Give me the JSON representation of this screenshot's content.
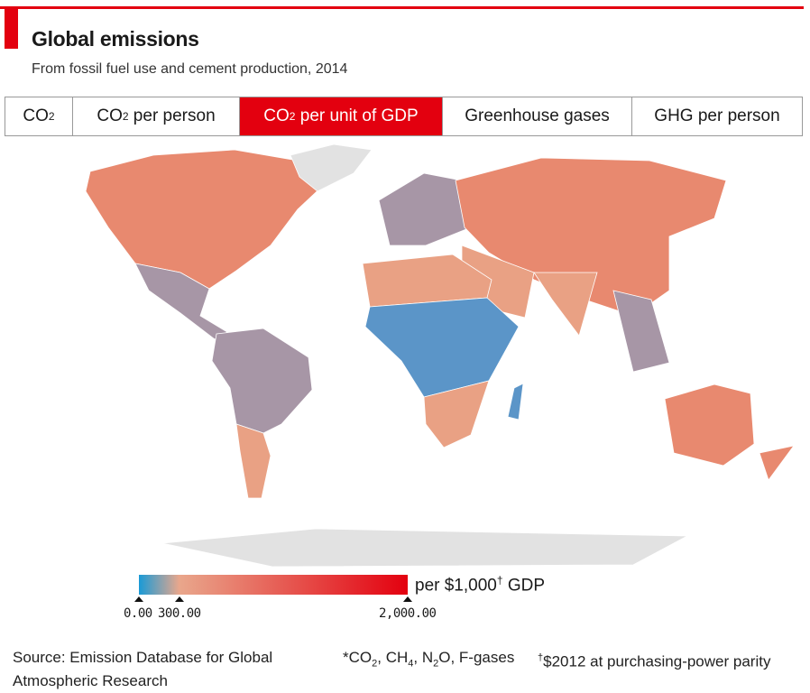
{
  "header": {
    "title": "Global emissions",
    "subtitle": "From fossil fuel use and cement production, 2014"
  },
  "tabs": [
    {
      "label": "CO",
      "sub": "2",
      "rest": "",
      "active": false
    },
    {
      "label": "CO",
      "sub": "2",
      "rest": " per person",
      "active": false
    },
    {
      "label": "CO",
      "sub": "2",
      "rest": " per unit of GDP",
      "active": true
    },
    {
      "label": "Greenhouse gases",
      "sub": "",
      "rest": "",
      "active": false
    },
    {
      "label": "GHG per person",
      "sub": "",
      "rest": "",
      "active": false
    }
  ],
  "legend": {
    "unit_pre": "per $1,000",
    "unit_sup": "†",
    "unit_post": " GDP",
    "ticks": [
      "0.00",
      "300.00",
      "2,000.00"
    ],
    "scale": {
      "min": 0,
      "mid": 300,
      "max": 2000,
      "colors": [
        "#1a9ad6",
        "#e9a78c",
        "#e3000f"
      ]
    }
  },
  "colors": {
    "accent": "#e3000f",
    "no_data": "#e2e2e2",
    "low": "#5b95c8",
    "mid_low": "#a796a6",
    "mid": "#e9a184",
    "high": "#e8896f"
  },
  "footer": {
    "source_line1": "Source: Emission Database for Global",
    "source_line2": "Atmospheric Research",
    "note_gases": [
      "*CO",
      "2",
      ", CH",
      "4",
      ", N",
      "2",
      "O, F-gases"
    ],
    "note_gdp_sup": "†",
    "note_gdp": "$2012 at purchasing-power parity"
  }
}
